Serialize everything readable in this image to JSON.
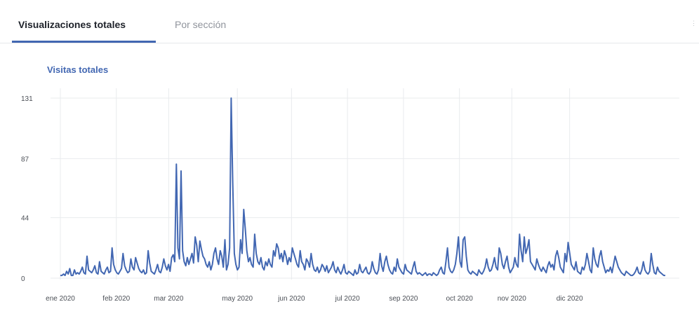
{
  "tabs": [
    {
      "label": "Visualizaciones totales",
      "active": true
    },
    {
      "label": "Por sección",
      "active": false
    }
  ],
  "colors": {
    "accent": "#4267b2",
    "line": "#4267b2",
    "grid": "#e9ebee",
    "tab_inactive": "#90949c"
  },
  "chart_data": {
    "type": "line",
    "title": "Visitas totales",
    "xlabel": "",
    "ylabel": "",
    "ylim": [
      0,
      131
    ],
    "yticks": [
      0,
      44,
      87,
      131
    ],
    "x_range_days": [
      0,
      335
    ],
    "xticks": [
      {
        "label": "ene 2020",
        "day": 0
      },
      {
        "label": "feb 2020",
        "day": 31
      },
      {
        "label": "mar 2020",
        "day": 60
      },
      {
        "label": "may 2020",
        "day": 98
      },
      {
        "label": "jun 2020",
        "day": 128
      },
      {
        "label": "jul 2020",
        "day": 159
      },
      {
        "label": "sep 2020",
        "day": 190
      },
      {
        "label": "oct 2020",
        "day": 221
      },
      {
        "label": "nov 2020",
        "day": 250
      },
      {
        "label": "dic 2020",
        "day": 282
      }
    ],
    "grid": true,
    "series": [
      {
        "values": [
          2,
          2,
          3,
          2,
          5,
          3,
          7,
          2,
          2,
          6,
          3,
          4,
          3,
          5,
          8,
          4,
          3,
          16,
          6,
          5,
          4,
          6,
          9,
          4,
          3,
          12,
          5,
          4,
          3,
          6,
          8,
          4,
          5,
          22,
          10,
          6,
          4,
          3,
          5,
          7,
          18,
          9,
          6,
          4,
          5,
          14,
          8,
          6,
          15,
          11,
          7,
          5,
          4,
          6,
          3,
          4,
          20,
          11,
          5,
          4,
          3,
          6,
          10,
          5,
          4,
          8,
          14,
          9,
          6,
          10,
          5,
          15,
          17,
          12,
          83,
          22,
          14,
          78,
          20,
          12,
          9,
          15,
          10,
          14,
          18,
          11,
          30,
          24,
          12,
          27,
          21,
          16,
          14,
          10,
          8,
          12,
          6,
          10,
          18,
          22,
          14,
          10,
          20,
          16,
          8,
          28,
          6,
          10,
          22,
          131,
          70,
          18,
          10,
          6,
          8,
          28,
          18,
          50,
          36,
          20,
          12,
          15,
          10,
          8,
          32,
          18,
          12,
          10,
          15,
          8,
          6,
          12,
          9,
          14,
          10,
          8,
          20,
          16,
          25,
          22,
          14,
          18,
          12,
          20,
          16,
          10,
          15,
          12,
          22,
          18,
          14,
          10,
          8,
          20,
          12,
          10,
          6,
          14,
          12,
          8,
          18,
          10,
          6,
          5,
          8,
          4,
          6,
          10,
          8,
          5,
          9,
          4,
          6,
          8,
          12,
          6,
          4,
          8,
          5,
          3,
          6,
          10,
          4,
          3,
          5,
          4,
          3,
          2,
          6,
          3,
          4,
          10,
          5,
          4,
          6,
          8,
          4,
          3,
          5,
          12,
          7,
          4,
          3,
          6,
          18,
          9,
          5,
          12,
          16,
          10,
          6,
          4,
          3,
          8,
          5,
          14,
          8,
          6,
          4,
          3,
          10,
          6,
          5,
          4,
          3,
          8,
          12,
          5,
          3,
          4,
          3,
          2,
          3,
          4,
          2,
          3,
          3,
          2,
          4,
          3,
          2,
          3,
          6,
          8,
          4,
          3,
          12,
          22,
          8,
          5,
          4,
          6,
          10,
          18,
          30,
          12,
          8,
          28,
          30,
          16,
          6,
          4,
          3,
          5,
          4,
          3,
          2,
          6,
          4,
          3,
          5,
          8,
          14,
          8,
          5,
          6,
          10,
          15,
          8,
          6,
          22,
          18,
          10,
          7,
          12,
          16,
          8,
          4,
          6,
          8,
          15,
          10,
          8,
          32,
          20,
          12,
          30,
          18,
          22,
          28,
          12,
          10,
          8,
          6,
          14,
          10,
          7,
          5,
          8,
          6,
          4,
          9,
          12,
          8,
          10,
          6,
          16,
          20,
          15,
          8,
          6,
          4,
          18,
          12,
          26,
          18,
          10,
          8,
          6,
          12,
          5,
          4,
          3,
          8,
          6,
          10,
          18,
          12,
          6,
          4,
          22,
          14,
          10,
          8,
          16,
          20,
          12,
          8,
          4,
          6,
          5,
          8,
          4,
          10,
          16,
          12,
          8,
          6,
          4,
          3,
          2,
          5,
          4,
          3,
          2,
          2,
          3,
          5,
          8,
          4,
          3,
          6,
          12,
          6,
          4,
          3,
          5,
          18,
          10,
          4,
          3,
          8,
          5,
          4,
          3,
          2,
          2
        ]
      }
    ]
  }
}
